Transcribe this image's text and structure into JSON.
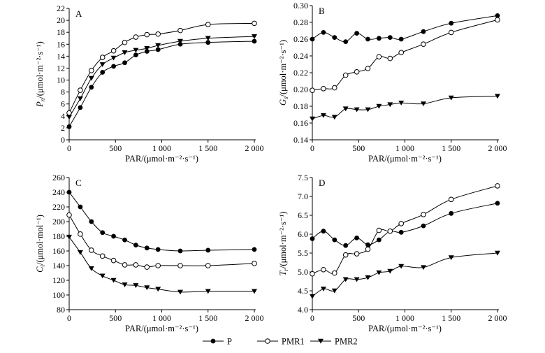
{
  "chart_data": [
    {
      "type": "line",
      "panel_label": "A",
      "xlabel": "PAR/(μmol·m⁻²·s⁻¹)",
      "ylabel": "Pn/(μmol·m⁻²·s⁻¹)",
      "ylabel_main": "P",
      "ylabel_sub": "n",
      "ylabel_rest": "/(μmol·m⁻²·s⁻¹)",
      "xlim": [
        0,
        2000
      ],
      "ylim": [
        0,
        22
      ],
      "xticks": [
        0,
        500,
        1000,
        1500,
        2000
      ],
      "xtick_labels": [
        "0",
        "500",
        "1 000",
        "1 500",
        "2 000"
      ],
      "yticks": [
        0,
        2,
        4,
        6,
        8,
        10,
        12,
        14,
        16,
        18,
        20,
        22
      ],
      "ytick_labels": [
        "0",
        "2",
        "4",
        "6",
        "8",
        "10",
        "12",
        "14",
        "16",
        "18",
        "20",
        "22"
      ],
      "x": [
        0,
        120,
        240,
        360,
        480,
        600,
        720,
        840,
        960,
        1200,
        1500,
        2000
      ],
      "series": [
        {
          "name": "P",
          "values": [
            2.2,
            5.4,
            8.8,
            11.3,
            12.3,
            12.9,
            14.2,
            14.8,
            15.1,
            16.0,
            16.3,
            16.5
          ]
        },
        {
          "name": "PMR1",
          "values": [
            4.5,
            8.3,
            11.6,
            13.8,
            14.9,
            16.3,
            17.2,
            17.6,
            17.7,
            18.3,
            19.3,
            19.5
          ]
        },
        {
          "name": "PMR2",
          "values": [
            3.8,
            6.9,
            10.3,
            12.6,
            13.7,
            14.6,
            15.0,
            15.3,
            15.8,
            16.5,
            17.0,
            17.3
          ]
        }
      ]
    },
    {
      "type": "line",
      "panel_label": "B",
      "xlabel": "PAR/(μmol·m⁻²·s⁻¹)",
      "ylabel": "Gs/(μmol·m⁻²·s⁻¹)",
      "ylabel_main": "G",
      "ylabel_sub": "s",
      "ylabel_rest": "/(μmol·m⁻²·s⁻¹)",
      "xlim": [
        0,
        2000
      ],
      "ylim": [
        0.14,
        0.3
      ],
      "xticks": [
        0,
        500,
        1000,
        1500,
        2000
      ],
      "xtick_labels": [
        "0",
        "500",
        "1 000",
        "1 500",
        "2 000"
      ],
      "yticks": [
        0.14,
        0.16,
        0.18,
        0.2,
        0.22,
        0.24,
        0.26,
        0.28,
        0.3
      ],
      "ytick_labels": [
        "0.14",
        "0.16",
        "0.18",
        "0.20",
        "0.22",
        "0.24",
        "0.26",
        "0.28",
        "0.30"
      ],
      "x": [
        0,
        120,
        240,
        360,
        480,
        600,
        720,
        840,
        960,
        1200,
        1500,
        2000
      ],
      "series": [
        {
          "name": "P",
          "values": [
            0.26,
            0.268,
            0.262,
            0.257,
            0.267,
            0.26,
            0.261,
            0.262,
            0.26,
            0.269,
            0.279,
            0.288
          ]
        },
        {
          "name": "PMR1",
          "values": [
            0.199,
            0.201,
            0.202,
            0.217,
            0.221,
            0.225,
            0.239,
            0.237,
            0.244,
            0.254,
            0.268,
            0.283
          ]
        },
        {
          "name": "PMR2",
          "values": [
            0.165,
            0.169,
            0.167,
            0.177,
            0.176,
            0.176,
            0.18,
            0.182,
            0.184,
            0.183,
            0.19,
            0.192
          ]
        }
      ]
    },
    {
      "type": "line",
      "panel_label": "C",
      "xlabel": "PAR/(μmol·m⁻²·s⁻¹)",
      "ylabel": "Ci/(μmol·mol⁻¹)",
      "ylabel_main": "C",
      "ylabel_sub": "i",
      "ylabel_rest": "/(μmol·mol⁻¹)",
      "xlim": [
        0,
        2000
      ],
      "ylim": [
        80,
        260
      ],
      "xticks": [
        0,
        500,
        1000,
        1500,
        2000
      ],
      "xtick_labels": [
        "0",
        "500",
        "1 000",
        "1 500",
        "2 000"
      ],
      "yticks": [
        80,
        100,
        120,
        140,
        160,
        180,
        200,
        220,
        240,
        260
      ],
      "ytick_labels": [
        "80",
        "100",
        "120",
        "140",
        "160",
        "180",
        "200",
        "220",
        "240",
        "260"
      ],
      "x": [
        0,
        120,
        240,
        360,
        480,
        600,
        720,
        840,
        960,
        1200,
        1500,
        2000
      ],
      "series": [
        {
          "name": "P",
          "values": [
            240,
            220,
            200,
            185,
            180,
            175,
            168,
            164,
            162,
            160,
            161,
            162
          ]
        },
        {
          "name": "PMR1",
          "values": [
            209,
            183,
            161,
            153,
            147,
            141,
            141,
            138,
            140,
            140,
            140,
            143
          ]
        },
        {
          "name": "PMR2",
          "values": [
            179,
            158,
            136,
            126,
            120,
            114,
            113,
            110,
            108,
            104,
            105,
            105
          ]
        }
      ]
    },
    {
      "type": "line",
      "panel_label": "D",
      "xlabel": "PAR/(μmol·m⁻²·s⁻¹)",
      "ylabel": "Tr/(μmol·m⁻²·s⁻¹)",
      "ylabel_main": "T",
      "ylabel_sub": "r",
      "ylabel_rest": "/(μmol·m⁻²·s⁻¹)",
      "xlim": [
        0,
        2000
      ],
      "ylim": [
        4.0,
        7.5
      ],
      "xticks": [
        0,
        500,
        1000,
        1500,
        2000
      ],
      "xtick_labels": [
        "0",
        "500",
        "1 000",
        "1 500",
        "2 000"
      ],
      "yticks": [
        4.0,
        4.5,
        5.0,
        5.5,
        6.0,
        6.5,
        7.0,
        7.5
      ],
      "ytick_labels": [
        "4.0",
        "4.5",
        "5.0",
        "5.5",
        "6.0",
        "6.5",
        "7.0",
        "7.5"
      ],
      "x": [
        0,
        120,
        240,
        360,
        480,
        600,
        720,
        840,
        960,
        1200,
        1500,
        2000
      ],
      "series": [
        {
          "name": "P",
          "values": [
            5.88,
            6.08,
            5.85,
            5.7,
            5.9,
            5.72,
            5.85,
            6.08,
            6.05,
            6.22,
            6.55,
            6.82
          ]
        },
        {
          "name": "PMR1",
          "values": [
            4.95,
            5.06,
            4.97,
            5.45,
            5.48,
            5.6,
            6.1,
            6.08,
            6.28,
            6.52,
            6.92,
            7.28
          ]
        },
        {
          "name": "PMR2",
          "values": [
            4.35,
            4.55,
            4.5,
            4.8,
            4.8,
            4.85,
            4.98,
            5.02,
            5.15,
            5.12,
            5.38,
            5.5
          ]
        }
      ]
    }
  ],
  "legend": {
    "placement": "bottom-center",
    "entries": [
      {
        "name": "P",
        "marker": "filled-circle"
      },
      {
        "name": "PMR1",
        "marker": "open-circle"
      },
      {
        "name": "PMR2",
        "marker": "filled-down-triangle"
      }
    ]
  }
}
